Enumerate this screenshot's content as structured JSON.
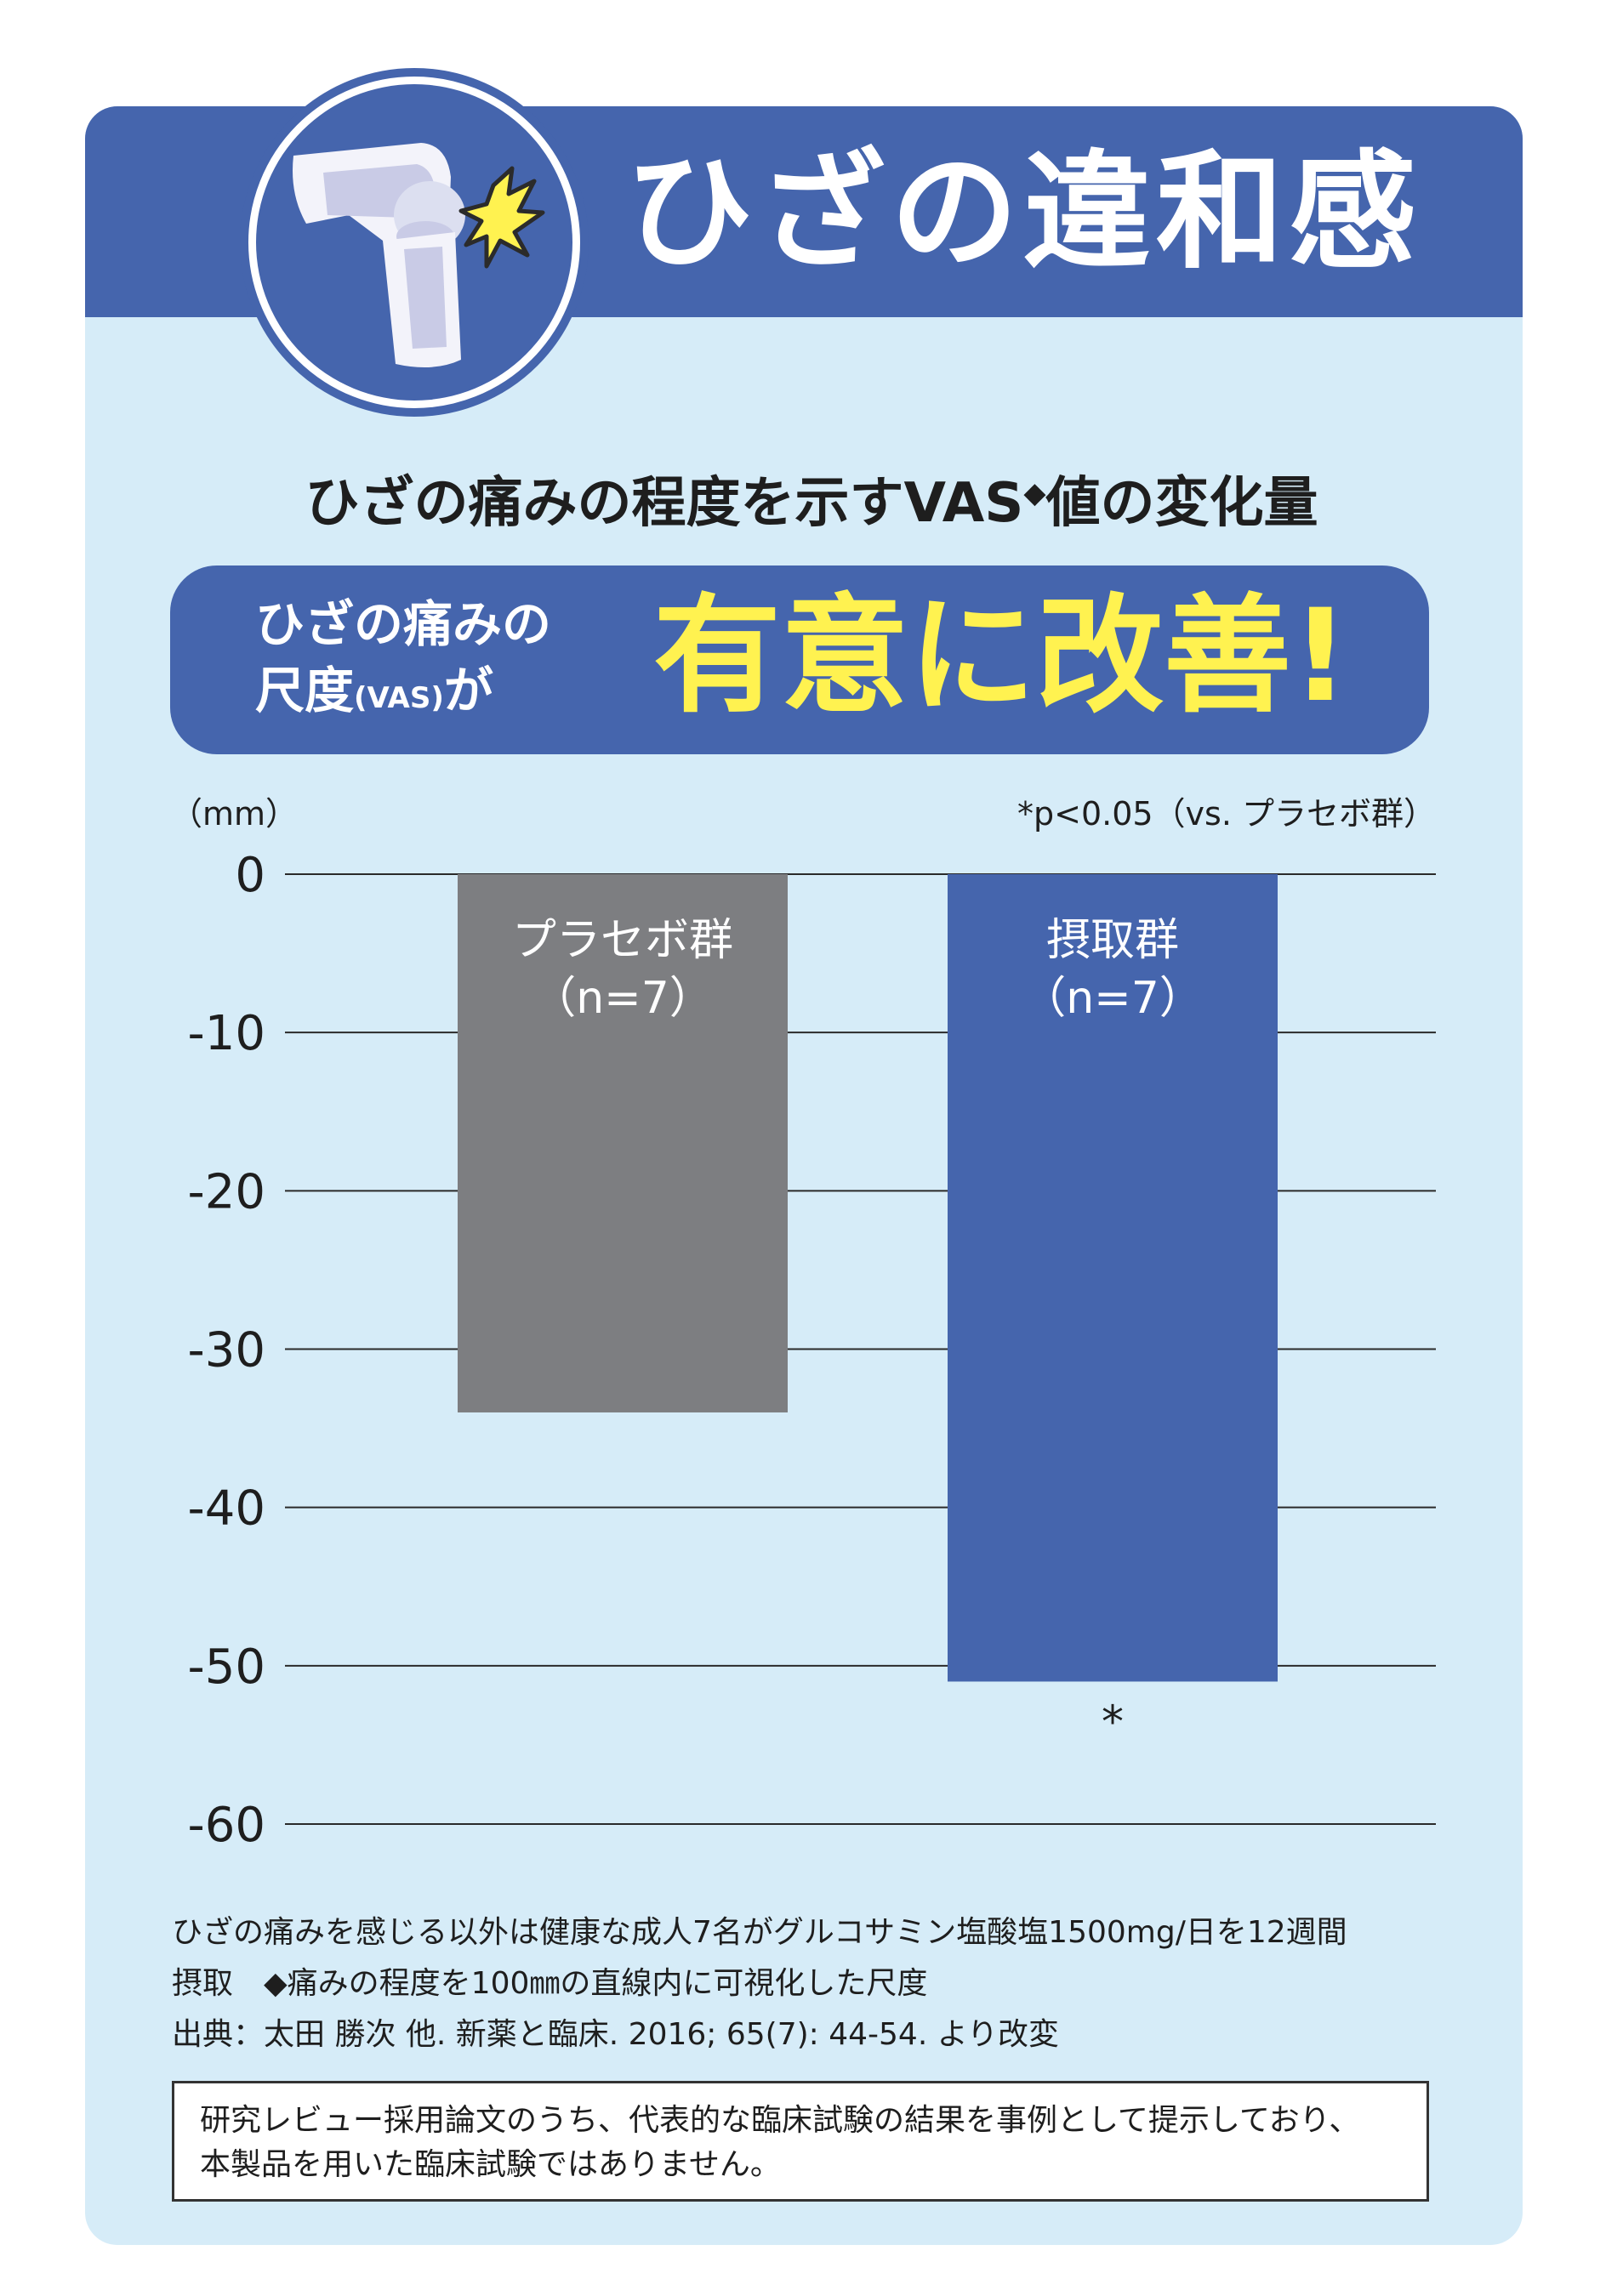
{
  "header": {
    "title": "ひざの違和感",
    "icon": "knee-pain-icon"
  },
  "subtitle": {
    "text": "ひざの痛みの程度を示すVAS",
    "mark": "◆",
    "text_after": "値の変化量"
  },
  "banner": {
    "line1": "ひざの痛みの",
    "line2_main": "尺度",
    "line2_small": "(VAS)",
    "line2_end": "が",
    "headline": "有意に改善!"
  },
  "chart_data": {
    "type": "bar",
    "unit_label": "（mm）",
    "significance_note": "*p<0.05（vs. プラセボ群）",
    "categories": [
      "プラセボ群\n（n=7）",
      "摂取群\n（n=7）"
    ],
    "values": [
      -34,
      -51
    ],
    "bar_colors": [
      "#7d7e81",
      "#4565ad"
    ],
    "ylim": [
      -60,
      0
    ],
    "yticks": [
      0,
      -10,
      -20,
      -30,
      -40,
      -50,
      -60
    ],
    "significance_marks": [
      "",
      "*"
    ],
    "grid": true
  },
  "notes": [
    "ひざの痛みを感じる以外は健康な成人7名がグルコサミン塩酸塩1500mg/日を12週間",
    "摂取　◆痛みの程度を100㎜の直線内に可視化した尺度",
    "出典：太田 勝次 他. 新薬と臨床. 2016; 65(7): 44-54. より改変"
  ],
  "disclaimer": [
    "研究レビュー採用論文のうち、代表的な臨床試験の結果を事例として提示しており、",
    "本製品を用いた臨床試験ではありません。"
  ],
  "colors": {
    "header_blue": "#4565ad",
    "background_light_blue": "#d6ecf8",
    "headline_yellow": "#fff250",
    "placebo_gray": "#7d7e81"
  }
}
